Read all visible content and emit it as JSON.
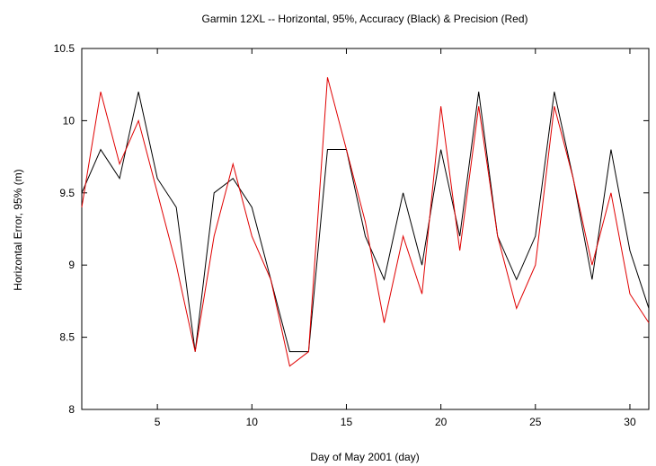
{
  "chart_data": {
    "type": "line",
    "title": "Garmin 12XL -- Horizontal, 95%, Accuracy (Black) & Precision (Red)",
    "xlabel": "Day of May 2001  (day)",
    "ylabel": "Horizontal Error, 95%  (m)",
    "xlim": [
      1,
      31
    ],
    "ylim": [
      8,
      10.5
    ],
    "xticks": [
      5,
      10,
      15,
      20,
      25,
      30
    ],
    "yticks": [
      8,
      8.5,
      9,
      9.5,
      10,
      10.5
    ],
    "xtick_labels": [
      "5",
      "10",
      "15",
      "20",
      "25",
      "30"
    ],
    "ytick_labels": [
      "8",
      "8.5",
      "9",
      "9.5",
      "10",
      "10.5"
    ],
    "grid": false,
    "legend": "none",
    "x": [
      1,
      2,
      3,
      4,
      5,
      6,
      7,
      8,
      9,
      10,
      11,
      12,
      13,
      14,
      15,
      16,
      17,
      18,
      19,
      20,
      21,
      22,
      23,
      24,
      25,
      26,
      27,
      28,
      29,
      30,
      31
    ],
    "series": [
      {
        "color": "#000000",
        "values": [
          9.5,
          9.8,
          9.6,
          10.2,
          9.6,
          9.4,
          8.4,
          9.5,
          9.6,
          9.4,
          8.9,
          8.4,
          8.4,
          9.8,
          9.8,
          9.2,
          8.9,
          9.5,
          9.0,
          9.8,
          9.2,
          10.2,
          9.2,
          8.9,
          9.2,
          10.2,
          9.6,
          8.9,
          9.8,
          9.1,
          8.7
        ]
      },
      {
        "color": "#e00000",
        "values": [
          9.4,
          10.2,
          9.7,
          10.0,
          9.5,
          9.0,
          8.4,
          9.2,
          9.7,
          9.2,
          8.9,
          8.3,
          8.4,
          10.3,
          9.8,
          9.3,
          8.6,
          9.2,
          8.8,
          10.1,
          9.1,
          10.1,
          9.2,
          8.7,
          9.0,
          10.1,
          9.6,
          9.0,
          9.5,
          8.8,
          8.6
        ]
      }
    ]
  }
}
